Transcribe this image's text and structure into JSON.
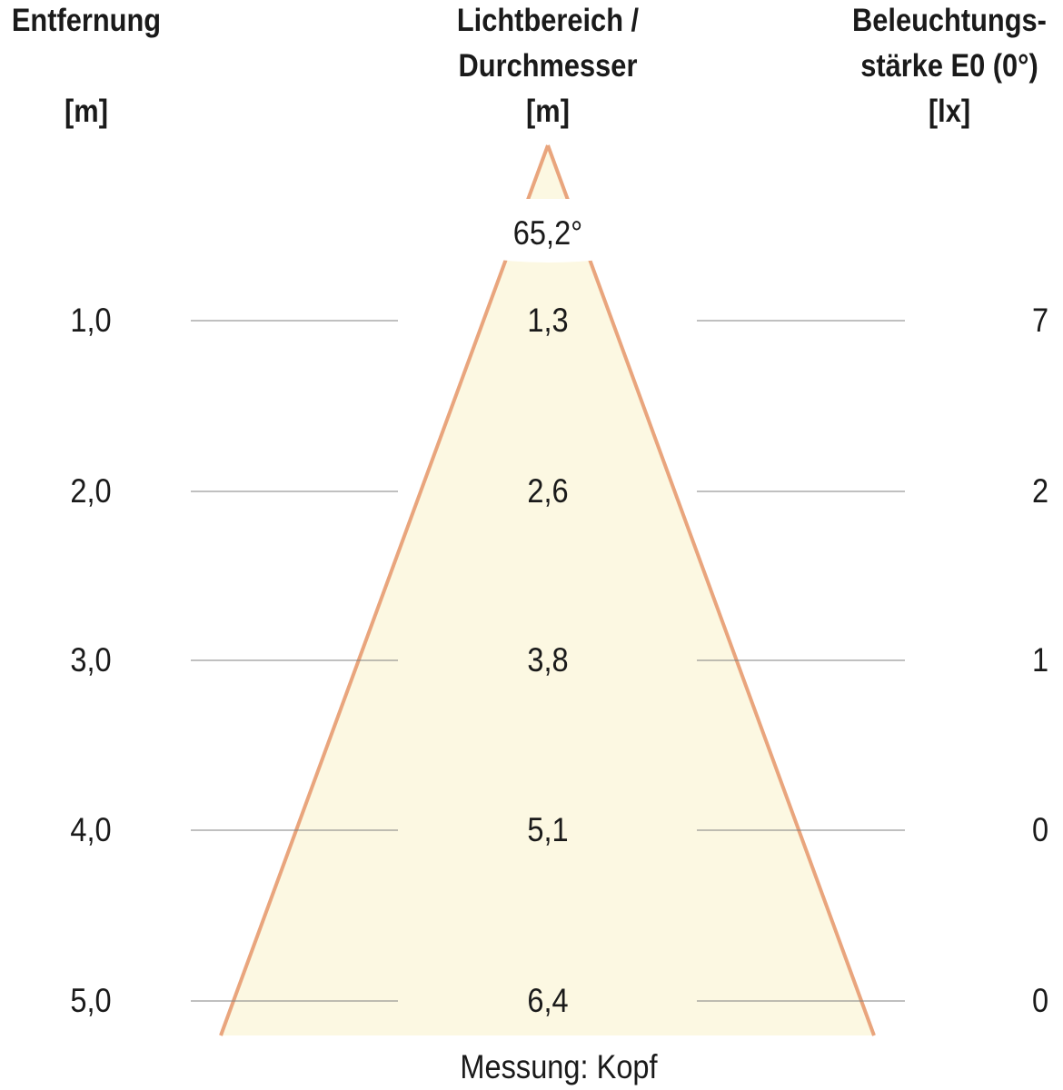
{
  "headers": {
    "distance": [
      "Entfernung",
      "",
      "[m]"
    ],
    "diameter": [
      "Lichtbereich /",
      "Durchmesser",
      "[m]"
    ],
    "illuminance": [
      "Beleuchtungs-",
      "stärke E0 (0°)",
      "[lx]"
    ]
  },
  "beam_angle": "65,2°",
  "rows": [
    {
      "distance": "1,0",
      "diameter": "1,3",
      "illuminance": "7"
    },
    {
      "distance": "2,0",
      "diameter": "2,6",
      "illuminance": "2"
    },
    {
      "distance": "3,0",
      "diameter": "3,8",
      "illuminance": "1"
    },
    {
      "distance": "4,0",
      "diameter": "5,1",
      "illuminance": "0"
    },
    {
      "distance": "5,0",
      "diameter": "6,4",
      "illuminance": "0"
    }
  ],
  "footer": "Messung: Kopf",
  "colors": {
    "cone_fill": "#FCF8E2",
    "cone_stroke": "#E9A57D",
    "rule": "#808080"
  }
}
